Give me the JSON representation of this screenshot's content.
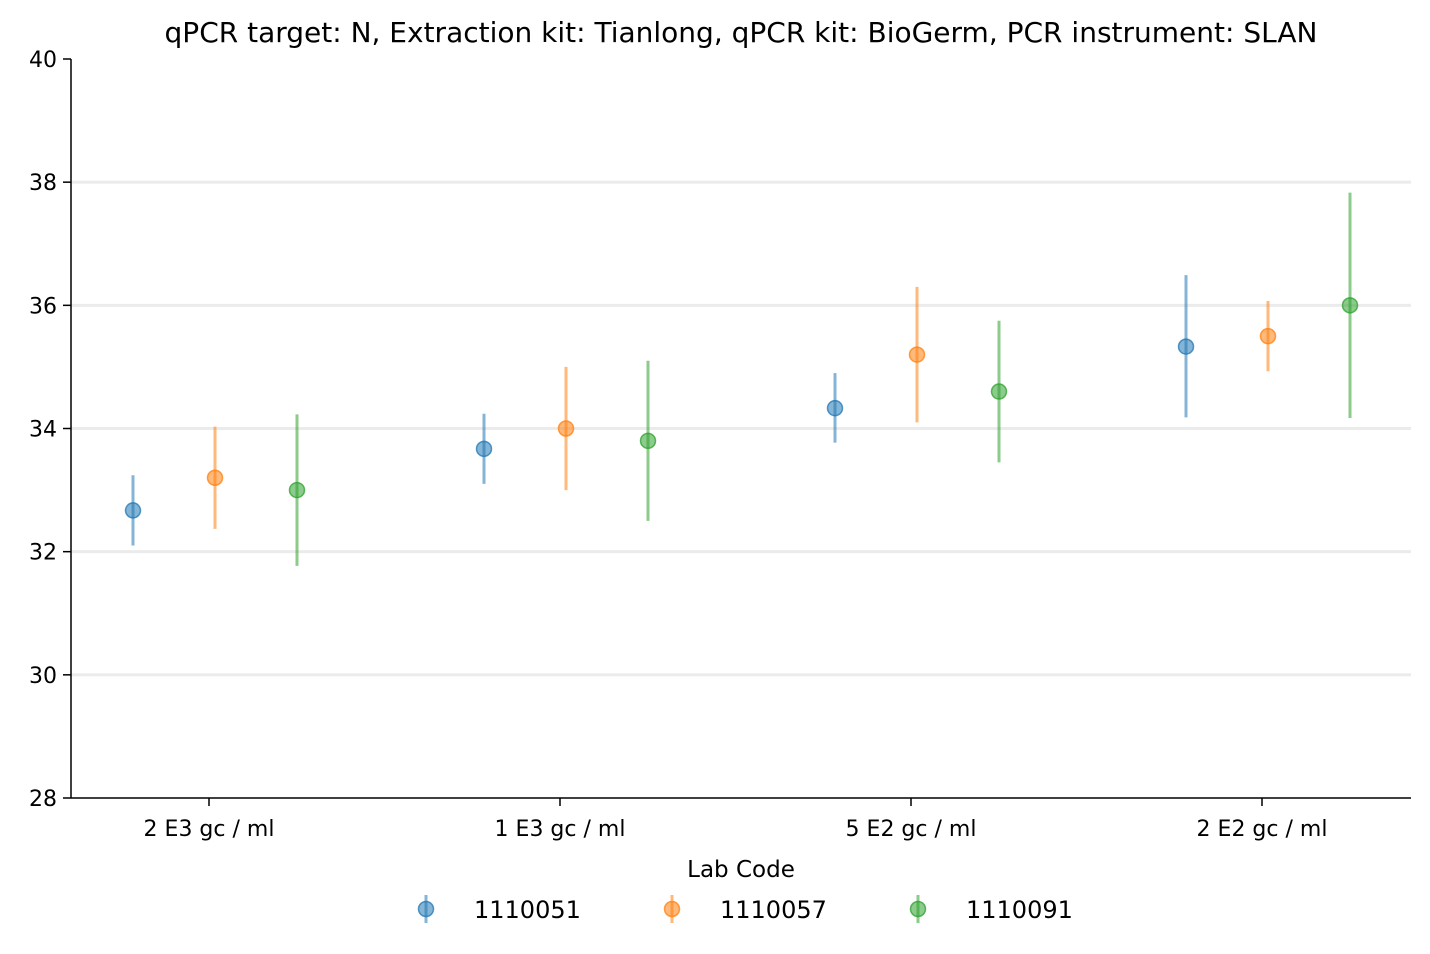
{
  "chart_data": {
    "type": "scatter",
    "title": "qPCR target: N, Extraction kit: Tianlong, qPCR kit: BioGerm, PCR instrument: SLAN",
    "xlabel": "",
    "ylabel": "",
    "categories": [
      "2 E3 gc / ml",
      "1 E3 gc / ml",
      "5 E2 gc / ml",
      "2 E2 gc / ml"
    ],
    "yticks": [
      "28",
      "30",
      "32",
      "34",
      "36",
      "38",
      "40"
    ],
    "ylim": [
      28,
      40
    ],
    "grid": "horizontal",
    "legend": {
      "title": "Lab Code",
      "placement": "bottom-center"
    },
    "series": [
      {
        "name": "1110051",
        "color": "#1f77b4",
        "values": [
          32.67,
          33.67,
          34.33,
          35.33
        ],
        "err_low": [
          32.1,
          33.1,
          33.77,
          34.18
        ],
        "err_high": [
          33.24,
          34.24,
          34.9,
          36.49
        ]
      },
      {
        "name": "1110057",
        "color": "#ff7f0e",
        "values": [
          33.2,
          34.0,
          35.2,
          35.5
        ],
        "err_low": [
          32.37,
          33.0,
          34.1,
          34.93
        ],
        "err_high": [
          34.03,
          35.0,
          36.3,
          36.07
        ]
      },
      {
        "name": "1110091",
        "color": "#2ca02c",
        "values": [
          33.0,
          33.8,
          34.6,
          36.0
        ],
        "err_low": [
          31.77,
          32.5,
          33.45,
          34.17
        ],
        "err_high": [
          34.23,
          35.1,
          35.75,
          37.83
        ]
      }
    ]
  }
}
